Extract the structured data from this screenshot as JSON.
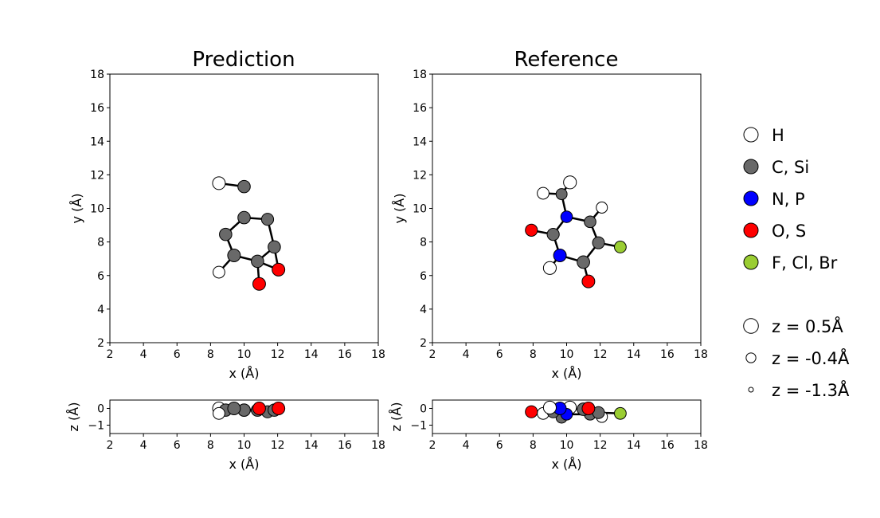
{
  "chart_data": {
    "type": "scatter",
    "title": "",
    "element_colors": {
      "H": "#ffffff",
      "C": "#696969",
      "N": "#0000ff",
      "O": "#ff0000",
      "F": "#9acd32"
    },
    "panels": [
      {
        "title": "Prediction",
        "xy": {
          "xlabel": "x (Å)",
          "ylabel": "y (Å)",
          "xlim": [
            2,
            18
          ],
          "ylim": [
            2,
            18
          ],
          "xticks": [
            "2",
            "4",
            "6",
            "8",
            "10",
            "12",
            "14",
            "16",
            "18"
          ],
          "yticks": [
            "2",
            "4",
            "6",
            "8",
            "10",
            "12",
            "14",
            "16",
            "18"
          ]
        },
        "xz": {
          "xlabel": "x (Å)",
          "ylabel": "z (Å)",
          "xlim": [
            2,
            18
          ],
          "zlim": [
            -1.5,
            0.5
          ],
          "xticks": [
            "2",
            "4",
            "6",
            "8",
            "10",
            "12",
            "14",
            "16",
            "18"
          ],
          "zticks": [
            "0",
            "−1"
          ]
        },
        "atoms": [
          {
            "el": "H",
            "x": 8.5,
            "y": 11.5,
            "z": 0.0
          },
          {
            "el": "C",
            "x": 10.0,
            "y": 11.3,
            "z": -0.1
          },
          {
            "el": "C",
            "x": 10.0,
            "y": 9.45,
            "z": -0.1
          },
          {
            "el": "C",
            "x": 11.4,
            "y": 9.35,
            "z": -0.2
          },
          {
            "el": "C",
            "x": 8.9,
            "y": 8.45,
            "z": -0.1
          },
          {
            "el": "C",
            "x": 11.8,
            "y": 7.7,
            "z": -0.1
          },
          {
            "el": "C",
            "x": 9.4,
            "y": 7.2,
            "z": 0.0
          },
          {
            "el": "C",
            "x": 10.8,
            "y": 6.85,
            "z": -0.1
          },
          {
            "el": "H",
            "x": 8.5,
            "y": 6.2,
            "z": -0.3
          },
          {
            "el": "O",
            "x": 12.05,
            "y": 6.35,
            "z": 0.0
          },
          {
            "el": "O",
            "x": 10.9,
            "y": 5.5,
            "z": 0.0
          }
        ],
        "bonds": [
          [
            0,
            1
          ],
          [
            2,
            3
          ],
          [
            2,
            4
          ],
          [
            3,
            5
          ],
          [
            4,
            6
          ],
          [
            6,
            7
          ],
          [
            5,
            7
          ],
          [
            5,
            9
          ],
          [
            7,
            9
          ],
          [
            7,
            10
          ],
          [
            6,
            8
          ]
        ]
      },
      {
        "title": "Reference",
        "xy": {
          "xlabel": "x (Å)",
          "ylabel": "y (Å)",
          "xlim": [
            2,
            18
          ],
          "ylim": [
            2,
            18
          ],
          "xticks": [
            "2",
            "4",
            "6",
            "8",
            "10",
            "12",
            "14",
            "16",
            "18"
          ],
          "yticks": [
            "2",
            "4",
            "6",
            "8",
            "10",
            "12",
            "14",
            "16",
            "18"
          ]
        },
        "xz": {
          "xlabel": "x (Å)",
          "ylabel": "z (Å)",
          "xlim": [
            2,
            18
          ],
          "zlim": [
            -1.5,
            0.5
          ],
          "xticks": [
            "2",
            "4",
            "6",
            "8",
            "10",
            "12",
            "14",
            "16",
            "18"
          ],
          "zticks": [
            "0",
            "−1"
          ]
        },
        "atoms": [
          {
            "el": "H",
            "x": 8.6,
            "y": 10.9,
            "z": -0.3
          },
          {
            "el": "C",
            "x": 9.7,
            "y": 10.85,
            "z": -0.55
          },
          {
            "el": "H",
            "x": 10.2,
            "y": 11.55,
            "z": 0.05
          },
          {
            "el": "H",
            "x": 12.1,
            "y": 10.05,
            "z": -0.5
          },
          {
            "el": "N",
            "x": 10.0,
            "y": 9.5,
            "z": -0.35
          },
          {
            "el": "C",
            "x": 11.4,
            "y": 9.2,
            "z": -0.35
          },
          {
            "el": "O",
            "x": 7.9,
            "y": 8.7,
            "z": -0.2
          },
          {
            "el": "C",
            "x": 9.2,
            "y": 8.45,
            "z": -0.2
          },
          {
            "el": "C",
            "x": 11.9,
            "y": 7.95,
            "z": -0.25
          },
          {
            "el": "F",
            "x": 13.2,
            "y": 7.7,
            "z": -0.3
          },
          {
            "el": "N",
            "x": 9.6,
            "y": 7.2,
            "z": 0.0
          },
          {
            "el": "C",
            "x": 11.0,
            "y": 6.8,
            "z": -0.05
          },
          {
            "el": "H",
            "x": 9.0,
            "y": 6.45,
            "z": 0.05
          },
          {
            "el": "O",
            "x": 11.3,
            "y": 5.65,
            "z": 0.0
          }
        ],
        "bonds": [
          [
            0,
            1
          ],
          [
            1,
            4
          ],
          [
            4,
            5
          ],
          [
            4,
            7
          ],
          [
            7,
            6
          ],
          [
            7,
            10
          ],
          [
            10,
            11
          ],
          [
            11,
            8
          ],
          [
            8,
            5
          ],
          [
            8,
            9
          ],
          [
            11,
            13
          ],
          [
            10,
            12
          ],
          [
            5,
            3
          ],
          [
            1,
            2
          ]
        ]
      }
    ],
    "legend": {
      "position": "right",
      "elements": [
        {
          "label": "H",
          "el": "H"
        },
        {
          "label": "C, Si",
          "el": "C"
        },
        {
          "label": "N, P",
          "el": "N"
        },
        {
          "label": "O, S",
          "el": "O"
        },
        {
          "label": "F, Cl, Br",
          "el": "F"
        }
      ],
      "sizes": [
        {
          "label": "z = 0.5Å",
          "z": 0.5
        },
        {
          "label": "z = -0.4Å",
          "z": -0.4
        },
        {
          "label": "z = -1.3Å",
          "z": -1.3
        }
      ]
    }
  }
}
